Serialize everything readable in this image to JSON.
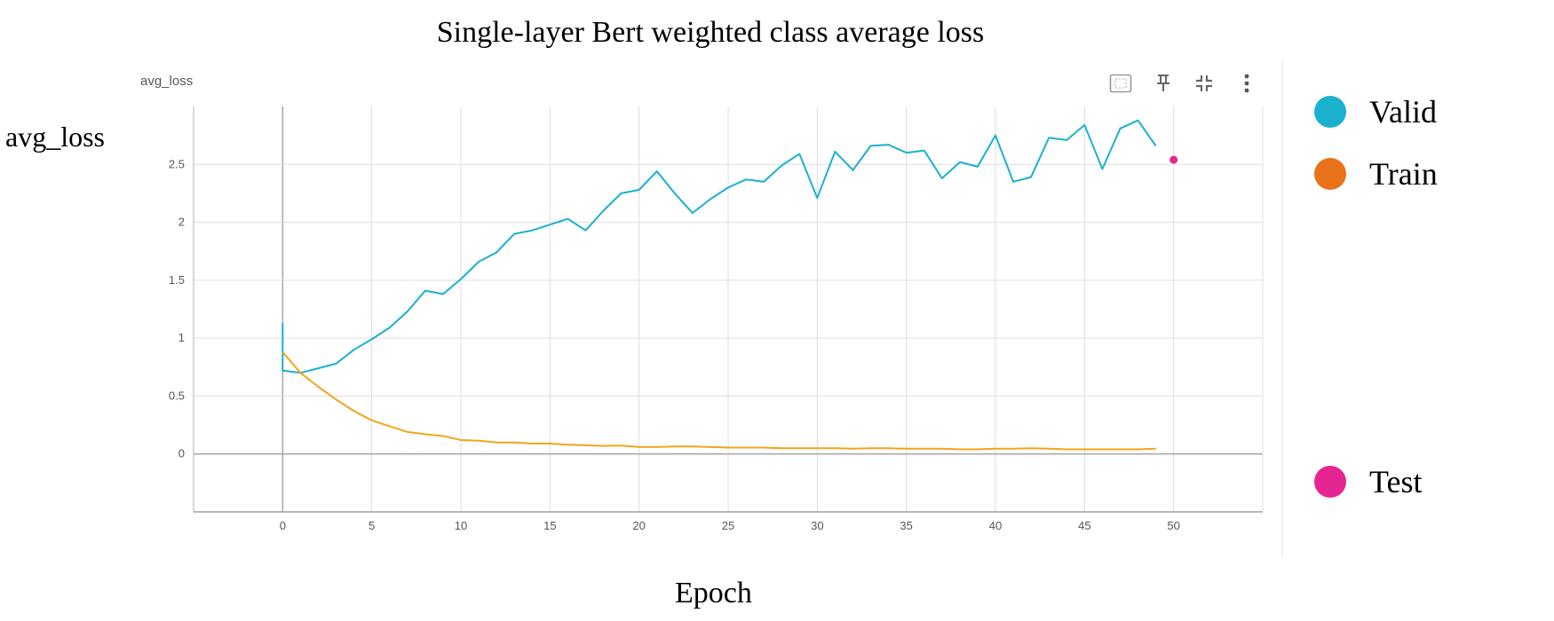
{
  "figure": {
    "title": "Single-layer Bert weighted class average loss",
    "ylabel": "avg_loss",
    "xlabel": "Epoch"
  },
  "card": {
    "title": "avg_loss",
    "icons": [
      "fit-domain-icon",
      "pin-icon",
      "collapse-icon",
      "more-options-icon"
    ]
  },
  "legend": [
    {
      "label": "Valid",
      "color": "#1ab1cf"
    },
    {
      "label": "Train",
      "color": "#e8711a"
    },
    {
      "label": "Test",
      "color": "#e52592"
    }
  ],
  "chart_data": {
    "type": "line",
    "title": "avg_loss",
    "xlabel": "Epoch",
    "ylabel": "avg_loss",
    "xlim": [
      -5,
      55
    ],
    "ylim": [
      -0.5,
      3.0
    ],
    "xticks": [
      0,
      5,
      10,
      15,
      20,
      25,
      30,
      35,
      40,
      45,
      50
    ],
    "yticks": [
      0,
      0.5,
      1,
      1.5,
      2,
      2.5
    ],
    "ytick_labels": [
      "0",
      "0.5",
      "1",
      "1.5",
      "2",
      "2.5"
    ],
    "grid": true,
    "legend_position": "right",
    "series": [
      {
        "name": "Valid",
        "color": "#1ab1cf",
        "type": "line",
        "x": [
          0,
          0,
          1,
          2,
          3,
          4,
          5,
          6,
          7,
          8,
          9,
          10,
          11,
          12,
          13,
          14,
          15,
          16,
          17,
          18,
          19,
          20,
          21,
          22,
          23,
          24,
          25,
          26,
          27,
          28,
          29,
          30,
          31,
          32,
          33,
          34,
          35,
          36,
          37,
          38,
          39,
          40,
          41,
          42,
          43,
          44,
          45,
          46,
          47,
          48,
          49
        ],
        "y": [
          1.13,
          0.72,
          0.7,
          0.74,
          0.78,
          0.9,
          0.99,
          1.09,
          1.23,
          1.41,
          1.38,
          1.51,
          1.66,
          1.74,
          1.9,
          1.93,
          1.98,
          2.03,
          1.93,
          2.1,
          2.25,
          2.28,
          2.44,
          2.25,
          2.08,
          2.2,
          2.3,
          2.37,
          2.35,
          2.49,
          2.59,
          2.21,
          2.61,
          2.45,
          2.66,
          2.67,
          2.6,
          2.62,
          2.38,
          2.52,
          2.48,
          2.75,
          2.35,
          2.39,
          2.73,
          2.71,
          2.84,
          2.46,
          2.81,
          2.88,
          2.66
        ]
      },
      {
        "name": "Train",
        "color": "#f3a51a",
        "type": "line",
        "x": [
          0,
          1,
          2,
          3,
          4,
          5,
          6,
          7,
          8,
          9,
          10,
          11,
          12,
          13,
          14,
          15,
          16,
          17,
          18,
          19,
          20,
          21,
          22,
          23,
          24,
          25,
          26,
          27,
          28,
          29,
          30,
          31,
          32,
          33,
          34,
          35,
          36,
          37,
          38,
          39,
          40,
          41,
          42,
          43,
          44,
          45,
          46,
          47,
          48,
          49
        ],
        "y": [
          0.88,
          0.7,
          0.58,
          0.47,
          0.37,
          0.29,
          0.24,
          0.19,
          0.17,
          0.155,
          0.12,
          0.115,
          0.1,
          0.1,
          0.09,
          0.09,
          0.08,
          0.075,
          0.07,
          0.072,
          0.06,
          0.06,
          0.065,
          0.065,
          0.06,
          0.055,
          0.055,
          0.055,
          0.05,
          0.05,
          0.05,
          0.05,
          0.045,
          0.05,
          0.05,
          0.045,
          0.045,
          0.045,
          0.04,
          0.04,
          0.045,
          0.045,
          0.05,
          0.045,
          0.04,
          0.04,
          0.04,
          0.04,
          0.04,
          0.045
        ]
      },
      {
        "name": "Test",
        "color": "#e52592",
        "type": "scatter",
        "x": [
          50
        ],
        "y": [
          2.54
        ]
      }
    ]
  }
}
